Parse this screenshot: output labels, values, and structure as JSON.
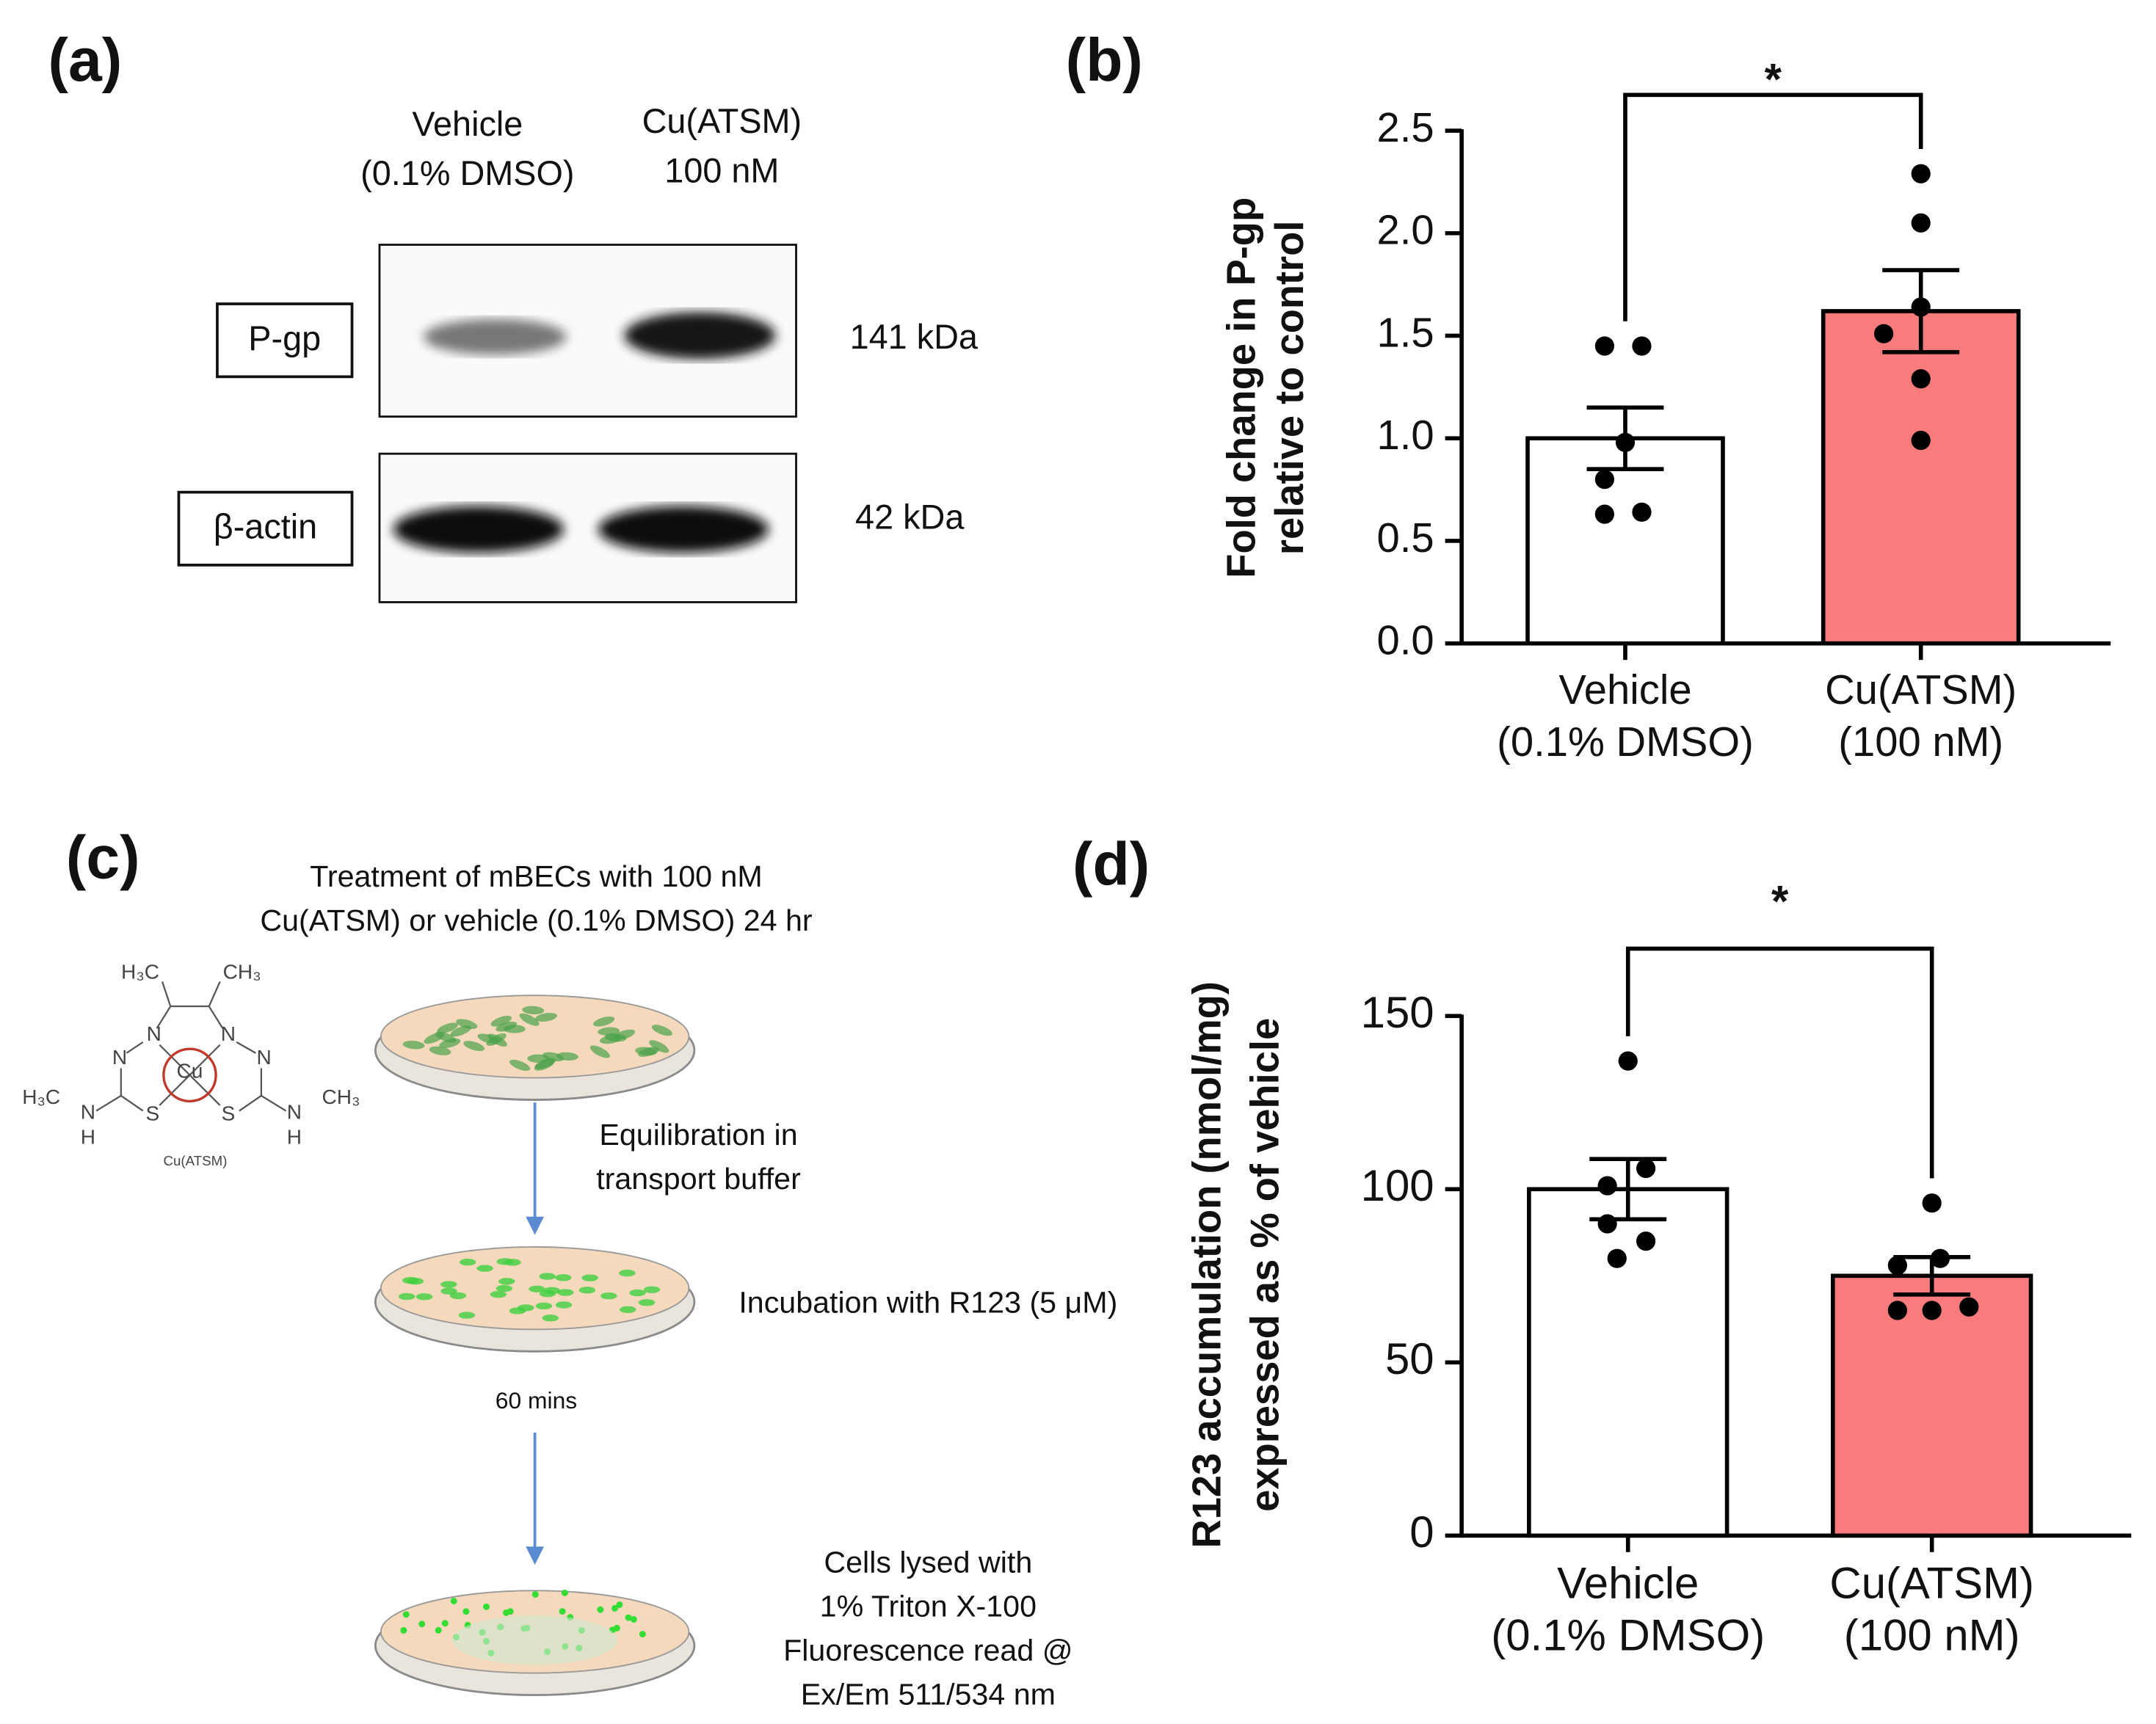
{
  "panel_a": {
    "label": "(a)",
    "lanes": [
      [
        "Vehicle",
        "(0.1% DMSO)"
      ],
      [
        "Cu(ATSM)",
        "100 nM"
      ]
    ],
    "rows": [
      {
        "label": "P-gp",
        "size": "141 kDa"
      },
      {
        "label": "β-actin",
        "size": "42 kDa"
      }
    ]
  },
  "panel_c": {
    "label": "(c)",
    "steps": [
      [
        "Treatment of mBECs with 100 nM",
        "Cu(ATSM) or vehicle (0.1% DMSO) 24 hr"
      ],
      [
        "Equilibration in",
        "transport buffer"
      ],
      [
        "Incubation with R123 (5 μM)"
      ],
      [
        "60 mins"
      ],
      [
        "Cells lysed with",
        "1% Triton X-100",
        "Fluorescence read @",
        "Ex/Em 511/534 nm"
      ]
    ],
    "structure": {
      "name": "Cu(ATSM)",
      "atoms": [
        "H₃C",
        "CH₃",
        "N",
        "N",
        "N",
        "N",
        "Cu",
        "H₃C",
        "S",
        "S",
        "N",
        "CH₃",
        "N",
        "H",
        "H"
      ]
    }
  },
  "chart_data": [
    {
      "type": "bar",
      "panel_label": "(b)",
      "ylabel": [
        "Fold change in P-gp",
        "relative to control"
      ],
      "categories": [
        [
          "Vehicle",
          "(0.1% DMSO)"
        ],
        [
          "Cu(ATSM)",
          "(100 nM)"
        ]
      ],
      "values": [
        1.0,
        1.62
      ],
      "errors": [
        0.15,
        0.2
      ],
      "points": [
        [
          1.45,
          1.45,
          0.98,
          0.8,
          0.63,
          0.64
        ],
        [
          2.29,
          2.05,
          1.64,
          1.51,
          1.29,
          0.99
        ]
      ],
      "colors": [
        "#ffffff",
        "#f87c7c"
      ],
      "significance": "*",
      "ylim": [
        0,
        2.5
      ],
      "yticks": [
        {
          "value": 0,
          "label": "0.0"
        },
        {
          "value": 0.5,
          "label": "0.5"
        },
        {
          "value": 1,
          "label": "1.0"
        },
        {
          "value": 1.5,
          "label": "1.5"
        },
        {
          "value": 2,
          "label": "2.0"
        },
        {
          "value": 2.5,
          "label": "2.5"
        }
      ]
    },
    {
      "type": "bar",
      "panel_label": "(d)",
      "ylabel": [
        "R123 accumulation (nmol/mg)",
        "expressed as % of vehicle"
      ],
      "categories": [
        [
          "Vehicle",
          "(0.1% DMSO)"
        ],
        [
          "Cu(ATSM)",
          "(100 nM)"
        ]
      ],
      "values": [
        100,
        75
      ],
      "errors": [
        8.7,
        5.4
      ],
      "points": [
        [
          137,
          101,
          106,
          90,
          85,
          80
        ],
        [
          96,
          78,
          80,
          65,
          65,
          66
        ]
      ],
      "colors": [
        "#ffffff",
        "#f87c7c"
      ],
      "significance": "*",
      "ylim": [
        0,
        150
      ],
      "yticks": [
        0,
        50,
        100,
        150
      ]
    }
  ]
}
